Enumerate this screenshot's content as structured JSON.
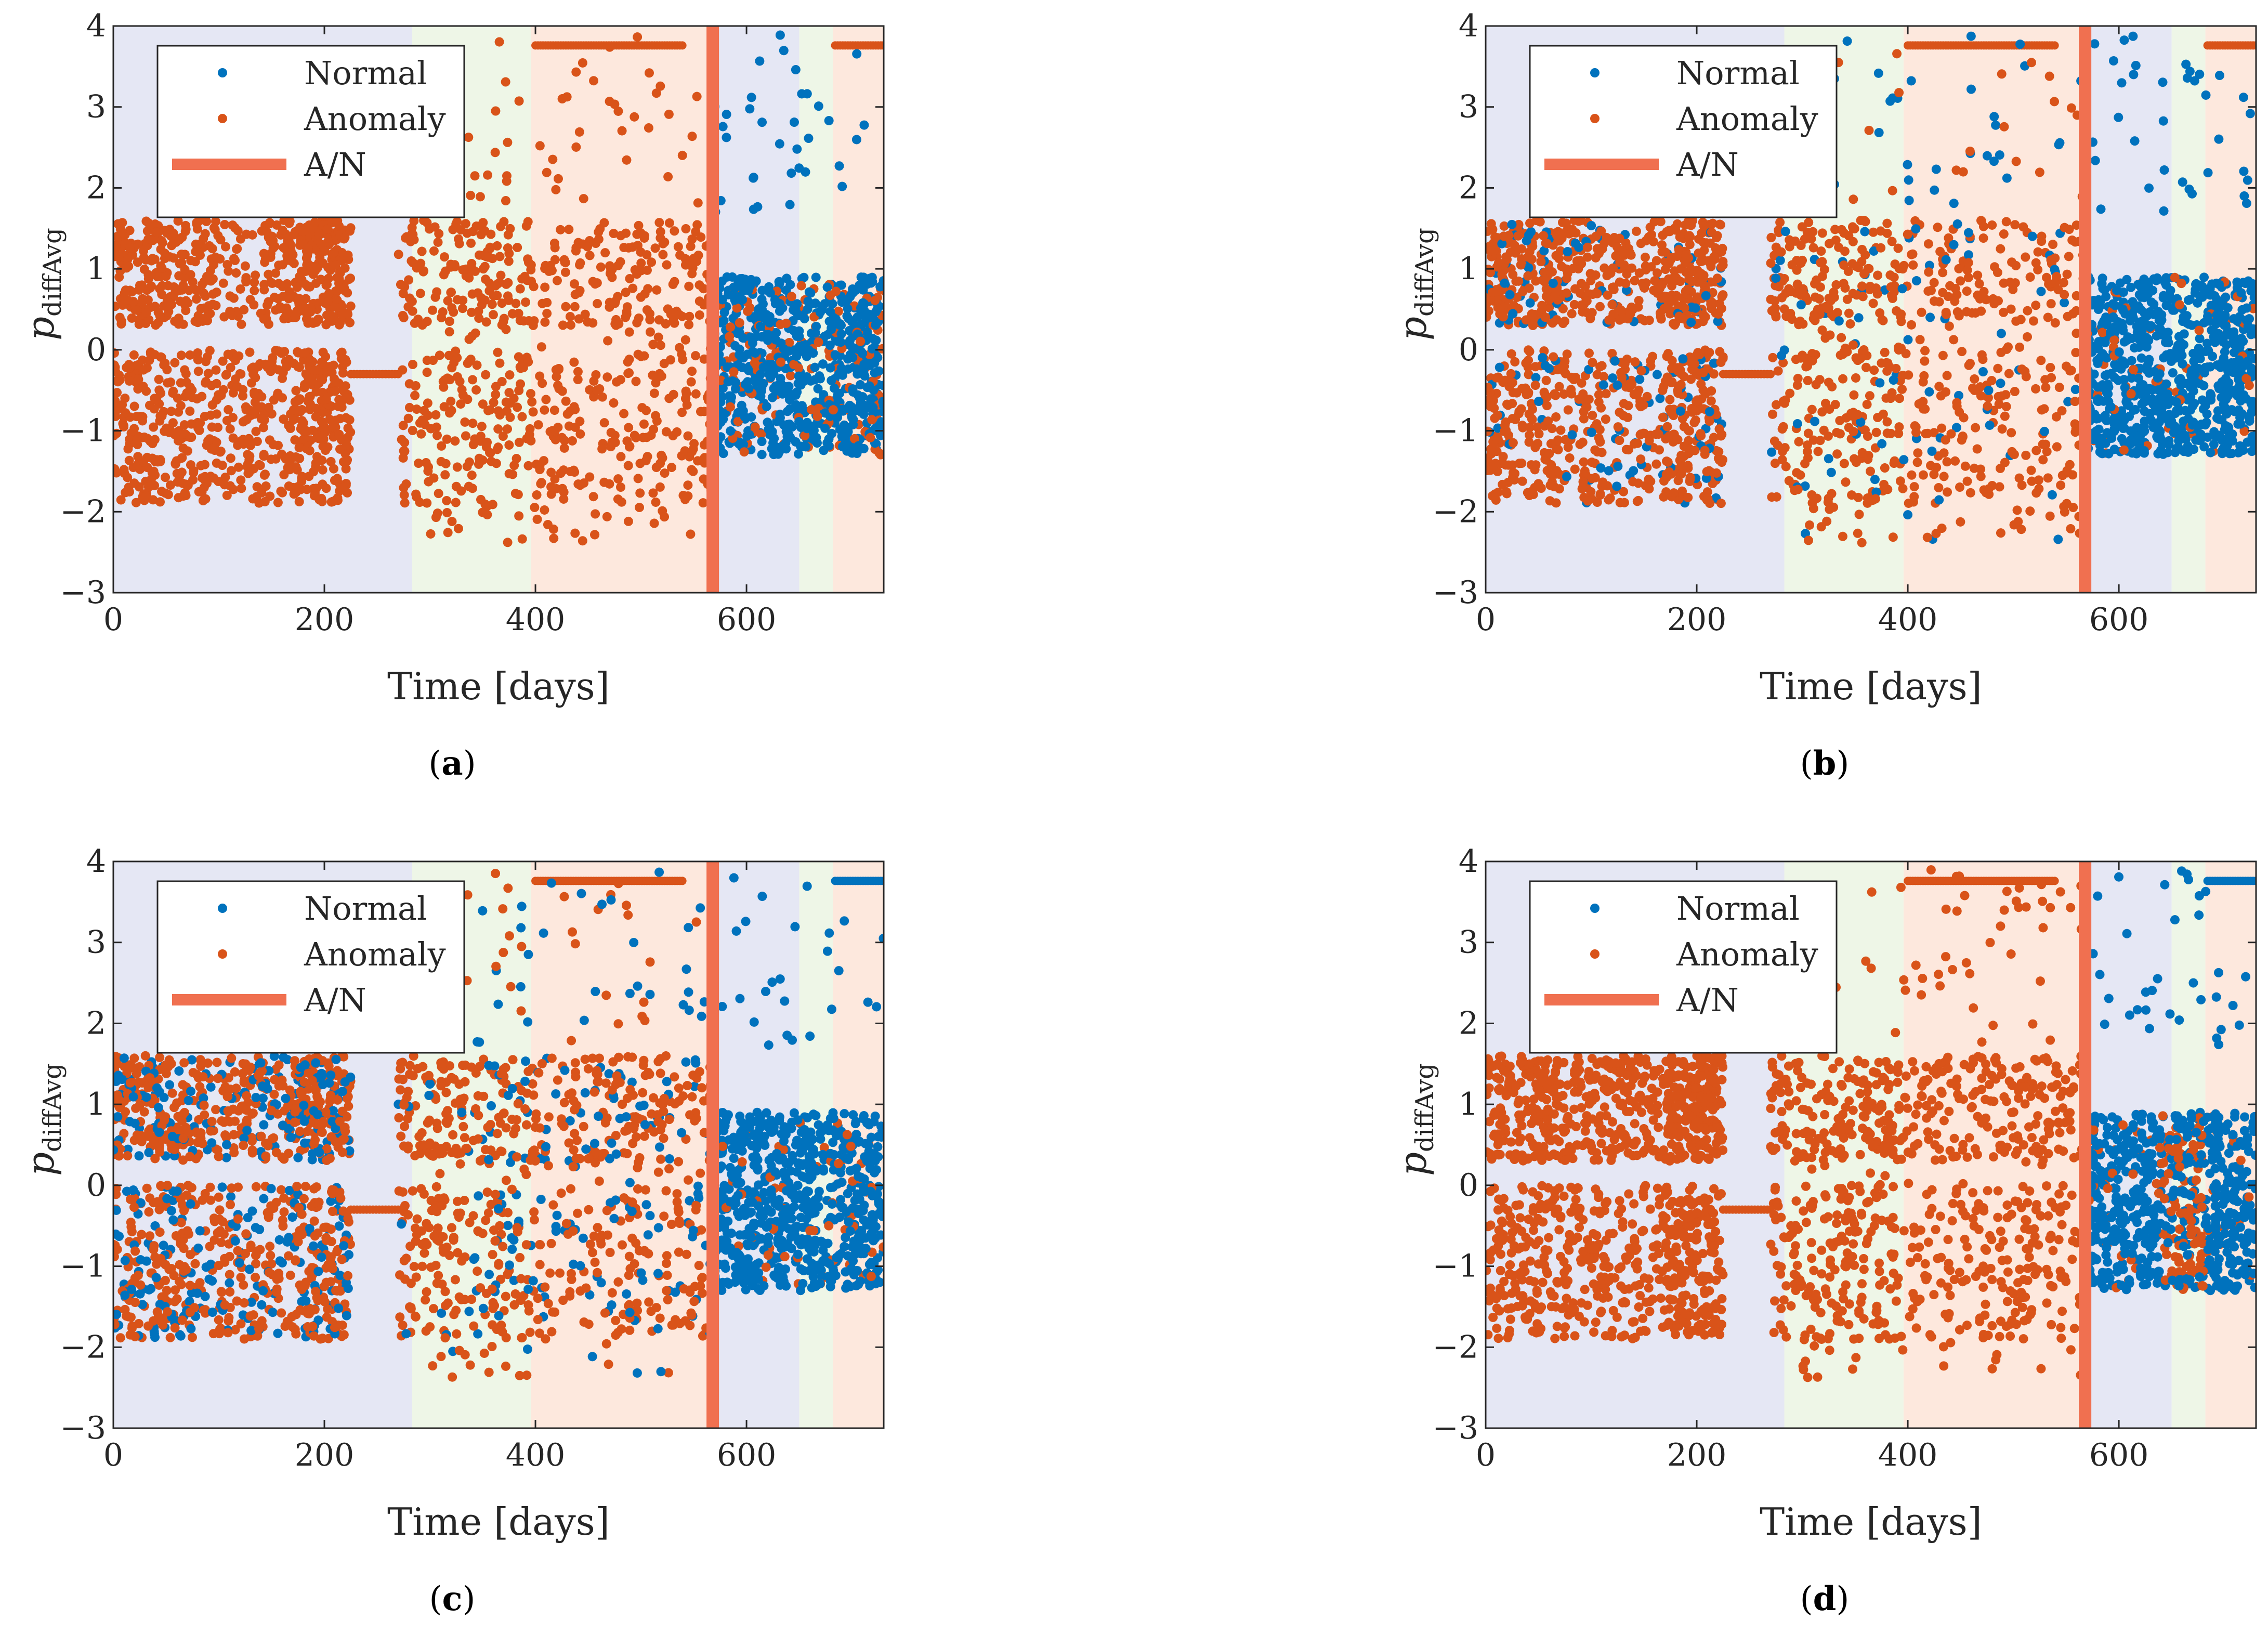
{
  "colors": {
    "normal": "#0072BD",
    "anomaly": "#D95319",
    "an_line": "#F07050",
    "band_blue": "#E5E7F4",
    "band_green": "#EEF6E7",
    "band_orange": "#FDE8DD"
  },
  "chart_data": [
    {
      "panel": "a",
      "caption": "a",
      "type": "scatter",
      "xlabel": "Time [days]",
      "ylabel": "p",
      "ylabel_sub": "diffAvg",
      "xlim": [
        0,
        730
      ],
      "ylim": [
        -3,
        4
      ],
      "xticks": [
        0,
        200,
        400,
        600
      ],
      "yticks": [
        -3,
        -2,
        -1,
        0,
        1,
        2,
        3,
        4
      ],
      "bands": [
        {
          "from": 0,
          "to": 283,
          "color": "band_blue"
        },
        {
          "from": 283,
          "to": 396,
          "color": "band_green"
        },
        {
          "from": 396,
          "to": 568,
          "color": "band_orange"
        },
        {
          "from": 568,
          "to": 650,
          "color": "band_blue"
        },
        {
          "from": 650,
          "to": 682,
          "color": "band_green"
        },
        {
          "from": 682,
          "to": 730,
          "color": "band_orange"
        }
      ],
      "an_line_x": 568,
      "legend": [
        "Normal",
        "Anomaly",
        "A/N"
      ],
      "series_summary": [
        {
          "name": "Normal",
          "regions": [
            [
              568,
              730,
              -1.4,
              1.0
            ]
          ]
        },
        {
          "name": "Anomaly",
          "regions": [
            [
              0,
              568,
              -2.4,
              1.7
            ],
            [
              568,
              730,
              -1.2,
              0.7
            ]
          ]
        }
      ]
    },
    {
      "panel": "b",
      "caption": "b",
      "type": "scatter",
      "xlabel": "Time [days]",
      "ylabel": "p",
      "ylabel_sub": "diffAvg",
      "xlim": [
        0,
        730
      ],
      "ylim": [
        -3,
        4
      ],
      "xticks": [
        0,
        200,
        400,
        600
      ],
      "yticks": [
        -3,
        -2,
        -1,
        0,
        1,
        2,
        3,
        4
      ],
      "bands": [
        {
          "from": 0,
          "to": 283,
          "color": "band_blue"
        },
        {
          "from": 283,
          "to": 396,
          "color": "band_green"
        },
        {
          "from": 396,
          "to": 568,
          "color": "band_orange"
        },
        {
          "from": 568,
          "to": 650,
          "color": "band_blue"
        },
        {
          "from": 650,
          "to": 682,
          "color": "band_green"
        },
        {
          "from": 682,
          "to": 730,
          "color": "band_orange"
        }
      ],
      "an_line_x": 568,
      "legend": [
        "Normal",
        "Anomaly",
        "A/N"
      ],
      "series_summary": [
        {
          "name": "Normal",
          "regions": [
            [
              0,
              568,
              -2.2,
              1.6
            ],
            [
              568,
              730,
              -1.4,
              1.0
            ]
          ]
        },
        {
          "name": "Anomaly",
          "regions": [
            [
              0,
              568,
              -2.4,
              1.7
            ]
          ]
        }
      ]
    },
    {
      "panel": "c",
      "caption": "c",
      "type": "scatter",
      "xlabel": "Time [days]",
      "ylabel": "p",
      "ylabel_sub": "diffAvg",
      "xlim": [
        0,
        730
      ],
      "ylim": [
        -3,
        4
      ],
      "xticks": [
        0,
        200,
        400,
        600
      ],
      "yticks": [
        -3,
        -2,
        -1,
        0,
        1,
        2,
        3,
        4
      ],
      "bands": [
        {
          "from": 0,
          "to": 283,
          "color": "band_blue"
        },
        {
          "from": 283,
          "to": 396,
          "color": "band_green"
        },
        {
          "from": 396,
          "to": 568,
          "color": "band_orange"
        },
        {
          "from": 568,
          "to": 650,
          "color": "band_blue"
        },
        {
          "from": 650,
          "to": 682,
          "color": "band_green"
        },
        {
          "from": 682,
          "to": 730,
          "color": "band_orange"
        }
      ],
      "an_line_x": 568,
      "legend": [
        "Normal",
        "Anomaly",
        "A/N"
      ],
      "series_summary": [
        {
          "name": "Normal",
          "regions": [
            [
              0,
              568,
              -2.3,
              1.7
            ],
            [
              568,
              730,
              -1.4,
              1.0
            ]
          ]
        },
        {
          "name": "Anomaly",
          "regions": [
            [
              0,
              568,
              -2.4,
              1.6
            ]
          ]
        }
      ]
    },
    {
      "panel": "d",
      "caption": "d",
      "type": "scatter",
      "xlabel": "Time [days]",
      "ylabel": "p",
      "ylabel_sub": "diffAvg",
      "xlim": [
        0,
        730
      ],
      "ylim": [
        -3,
        4
      ],
      "xticks": [
        0,
        200,
        400,
        600
      ],
      "yticks": [
        -3,
        -2,
        -1,
        0,
        1,
        2,
        3,
        4
      ],
      "bands": [
        {
          "from": 0,
          "to": 283,
          "color": "band_blue"
        },
        {
          "from": 283,
          "to": 396,
          "color": "band_green"
        },
        {
          "from": 396,
          "to": 568,
          "color": "band_orange"
        },
        {
          "from": 568,
          "to": 650,
          "color": "band_blue"
        },
        {
          "from": 650,
          "to": 682,
          "color": "band_green"
        },
        {
          "from": 682,
          "to": 730,
          "color": "band_orange"
        }
      ],
      "an_line_x": 568,
      "legend": [
        "Normal",
        "Anomaly",
        "A/N"
      ],
      "series_summary": [
        {
          "name": "Normal",
          "regions": [
            [
              568,
              730,
              -1.4,
              1.0
            ]
          ]
        },
        {
          "name": "Anomaly",
          "regions": [
            [
              0,
              568,
              -2.4,
              1.7
            ],
            [
              640,
              680,
              -1.0,
              1.0
            ]
          ]
        }
      ]
    }
  ]
}
